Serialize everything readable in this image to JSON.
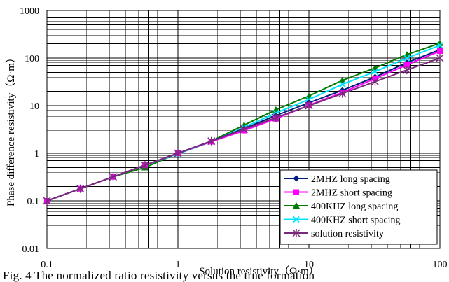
{
  "chart_data": {
    "type": "line",
    "xlabel": "Solution resistivity（Ω·m）",
    "ylabel": "Phase difference  resistivity（Ω·m）",
    "xscale": "log",
    "yscale": "log",
    "xlim": [
      0.1,
      100
    ],
    "ylim": [
      0.01,
      1000
    ],
    "x_ticks": [
      "0.1",
      "1",
      "10",
      "100"
    ],
    "y_ticks": [
      "0.01",
      "0.1",
      "1",
      "10",
      "100",
      "1000"
    ],
    "grid": true,
    "legend_position": "bottom-right",
    "series": [
      {
        "name": "2MHZ long spacing",
        "color": "#001f7a",
        "marker": "diamond",
        "x": [
          0.1,
          0.18,
          0.32,
          0.56,
          1,
          1.8,
          3.2,
          5.6,
          10,
          18,
          32,
          56,
          100
        ],
        "y": [
          0.1,
          0.18,
          0.32,
          0.56,
          1.0,
          1.8,
          3.3,
          6.2,
          11.5,
          21,
          40,
          80,
          150
        ]
      },
      {
        "name": "2MHZ short spacing",
        "color": "#ff00ff",
        "marker": "square",
        "x": [
          0.1,
          0.18,
          0.32,
          0.56,
          1,
          1.8,
          3.2,
          5.6,
          10,
          18,
          32,
          56,
          100
        ],
        "y": [
          0.1,
          0.18,
          0.32,
          0.56,
          1.0,
          1.75,
          3.0,
          5.3,
          10.2,
          19,
          37,
          72,
          140
        ]
      },
      {
        "name": "400KHZ long spacing",
        "color": "#007a00",
        "marker": "triangle",
        "x": [
          0.1,
          0.18,
          0.32,
          0.56,
          1,
          1.8,
          3.2,
          5.6,
          10,
          18,
          32,
          56,
          100
        ],
        "y": [
          0.1,
          0.18,
          0.32,
          0.5,
          1.0,
          1.8,
          3.9,
          8.2,
          16,
          34,
          62,
          118,
          205
        ]
      },
      {
        "name": "400KHZ short spacing",
        "color": "#00e5ff",
        "marker": "x",
        "x": [
          0.1,
          0.18,
          0.32,
          0.56,
          1,
          1.8,
          3.2,
          5.6,
          10,
          18,
          32,
          56,
          100
        ],
        "y": [
          0.1,
          0.18,
          0.32,
          0.56,
          0.97,
          1.75,
          3.5,
          7.0,
          13.5,
          28,
          52,
          100,
          185
        ]
      },
      {
        "name": "solution resistivity",
        "color": "#7a2a7a",
        "marker": "asterisk",
        "x": [
          0.1,
          0.18,
          0.32,
          0.56,
          1,
          1.8,
          3.2,
          5.6,
          10,
          18,
          32,
          56,
          100
        ],
        "y": [
          0.1,
          0.18,
          0.32,
          0.56,
          1.0,
          1.8,
          3.2,
          5.6,
          10,
          18,
          32,
          56,
          100
        ]
      }
    ]
  },
  "caption": "Fig. 4  The normalized ratio resistivity versus the true formation"
}
